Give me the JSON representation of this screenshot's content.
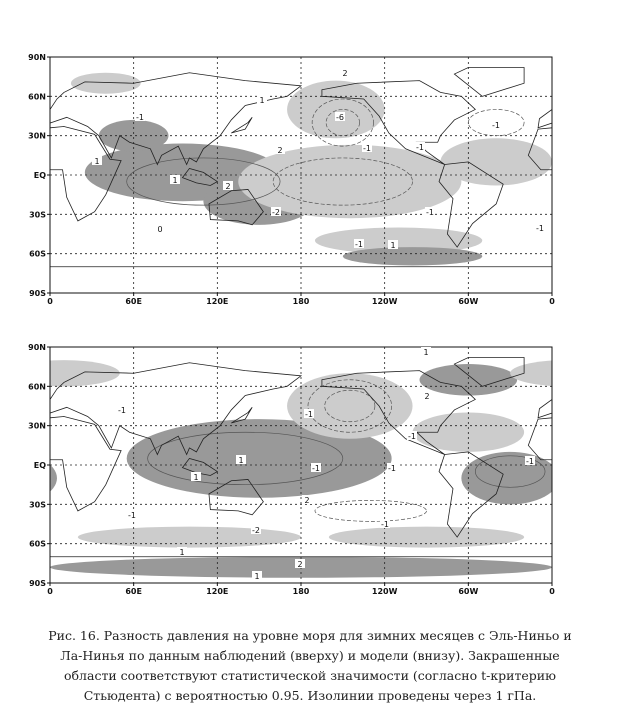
{
  "panels": [
    {
      "y_labels": [
        "90N",
        "60N",
        "30N",
        "EQ",
        "30S",
        "60S",
        "90S"
      ],
      "x_labels": [
        "0",
        "60E",
        "120E",
        "180",
        "120W",
        "60W",
        "0"
      ],
      "contour_labels": [
        "2",
        "-6",
        "-1",
        "1",
        "1",
        "2",
        "2",
        "-2",
        "-1",
        "-1",
        "-1",
        "-1",
        "1",
        "-1",
        "1",
        "-1",
        "0"
      ]
    },
    {
      "y_labels": [
        "90N",
        "60N",
        "30N",
        "EQ",
        "30S",
        "60S",
        "90S"
      ],
      "x_labels": [
        "0",
        "60E",
        "120E",
        "180",
        "120W",
        "60W",
        "0"
      ],
      "contour_labels": [
        "1",
        "2",
        "-1",
        "-1",
        "1",
        "1",
        "-1",
        "-1",
        "-1",
        "-1",
        "2",
        "-2",
        "-1",
        "-1",
        "1",
        "2",
        "1"
      ]
    }
  ],
  "caption": {
    "lines": [
      "Рис. 16. Разность давления на уровне моря для зимних месяцев с Эль-Ниньо и",
      "Ла-Нинья по данным наблюдений (вверху) и модели (внизу). Закрашенные",
      "области соответствуют статистической значимости (согласно t-критерию",
      "Стьюдента) с вероятностью 0.95. Изолинии проведены через 1 гПа."
    ]
  }
}
